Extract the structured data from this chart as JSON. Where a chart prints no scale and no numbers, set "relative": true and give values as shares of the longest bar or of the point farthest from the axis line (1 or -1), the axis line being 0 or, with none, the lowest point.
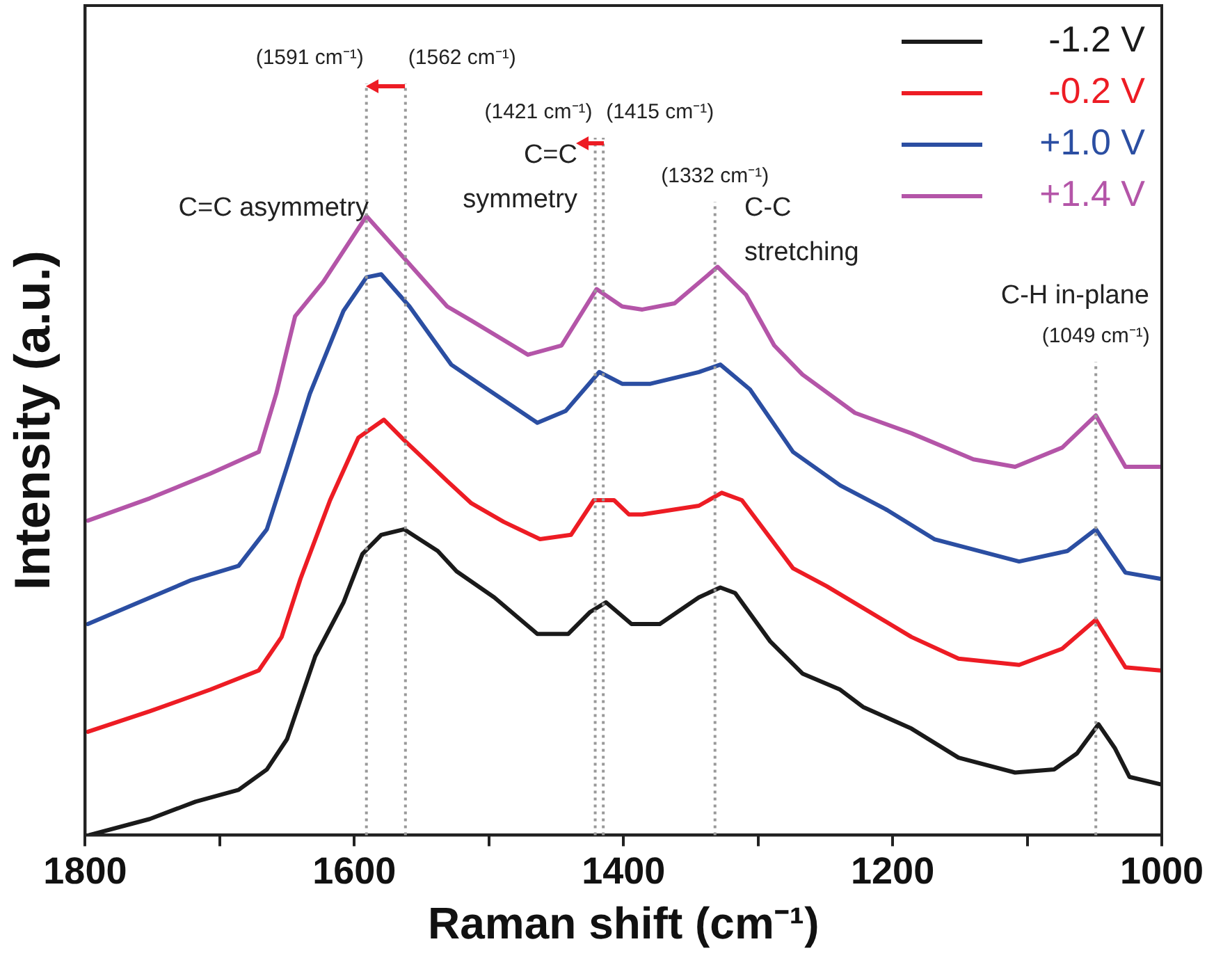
{
  "chart_data": {
    "type": "line",
    "relative": true,
    "xlabel": "Raman shift (cm⁻¹)",
    "ylabel": "Intensity (a.u.)",
    "xlim": [
      1800,
      1000
    ],
    "xticks": [
      1800,
      {
        "value": 1700,
        "label": null
      },
      1600,
      {
        "value": 1500,
        "label": null
      },
      1400,
      {
        "value": 1300,
        "label": null
      },
      1200,
      {
        "value": 1100,
        "label": null
      },
      1000
    ],
    "legend": "top right",
    "grid": false,
    "marker": "none",
    "line_style": "solid",
    "series": [
      {
        "name": "-1.2 V",
        "color": "#1a1a1a",
        "x": [
          1797,
          1752,
          1718,
          1686,
          1665,
          1650,
          1629,
          1608,
          1594,
          1580,
          1563,
          1538,
          1524,
          1496,
          1464,
          1441,
          1425,
          1413,
          1394,
          1373,
          1344,
          1328,
          1317,
          1291,
          1267,
          1239,
          1222,
          1186,
          1151,
          1109,
          1080,
          1063,
          1047,
          1035,
          1024,
          1001
        ],
        "values": [
          0.0,
          0.026,
          0.054,
          0.073,
          0.106,
          0.155,
          0.289,
          0.376,
          0.454,
          0.485,
          0.494,
          0.459,
          0.426,
          0.384,
          0.325,
          0.325,
          0.36,
          0.376,
          0.341,
          0.341,
          0.384,
          0.4,
          0.391,
          0.313,
          0.261,
          0.235,
          0.207,
          0.172,
          0.125,
          0.101,
          0.106,
          0.132,
          0.179,
          0.141,
          0.094,
          0.082
        ]
      },
      {
        "name": "-0.2 V",
        "color": "#ed1c24",
        "x": [
          1798,
          1752,
          1707,
          1671,
          1654,
          1640,
          1618,
          1597,
          1578,
          1563,
          1531,
          1513,
          1489,
          1462,
          1439,
          1422,
          1407,
          1396,
          1386,
          1344,
          1327,
          1312,
          1274,
          1249,
          1222,
          1186,
          1151,
          1106,
          1074,
          1049,
          1027,
          1001
        ],
        "values": [
          0.167,
          0.2,
          0.235,
          0.266,
          0.32,
          0.414,
          0.541,
          0.642,
          0.671,
          0.638,
          0.572,
          0.536,
          0.506,
          0.478,
          0.485,
          0.541,
          0.541,
          0.518,
          0.518,
          0.532,
          0.553,
          0.541,
          0.431,
          0.402,
          0.367,
          0.32,
          0.285,
          0.275,
          0.301,
          0.348,
          0.271,
          0.266
        ]
      },
      {
        "name": "+1.0 V",
        "color": "#2b4ea2",
        "x": [
          1798,
          1760,
          1721,
          1686,
          1665,
          1650,
          1633,
          1608,
          1591,
          1580,
          1559,
          1528,
          1507,
          1464,
          1443,
          1418,
          1401,
          1380,
          1344,
          1328,
          1306,
          1274,
          1239,
          1204,
          1169,
          1106,
          1070,
          1049,
          1027,
          1001
        ],
        "values": [
          0.341,
          0.376,
          0.412,
          0.435,
          0.494,
          0.595,
          0.713,
          0.847,
          0.901,
          0.906,
          0.854,
          0.76,
          0.729,
          0.666,
          0.685,
          0.748,
          0.729,
          0.729,
          0.748,
          0.76,
          0.72,
          0.619,
          0.565,
          0.525,
          0.478,
          0.442,
          0.459,
          0.494,
          0.424,
          0.414
        ]
      },
      {
        "name": "+1.4 V",
        "color": "#b455a8",
        "x": [
          1798,
          1752,
          1707,
          1671,
          1658,
          1644,
          1623,
          1591,
          1563,
          1531,
          1513,
          1471,
          1446,
          1420,
          1401,
          1386,
          1362,
          1330,
          1309,
          1288,
          1267,
          1228,
          1186,
          1140,
          1109,
          1074,
          1049,
          1027,
          1001
        ],
        "values": [
          0.508,
          0.544,
          0.584,
          0.619,
          0.713,
          0.838,
          0.894,
          1.0,
          0.932,
          0.854,
          0.831,
          0.776,
          0.791,
          0.882,
          0.854,
          0.849,
          0.859,
          0.918,
          0.873,
          0.791,
          0.744,
          0.682,
          0.649,
          0.607,
          0.595,
          0.626,
          0.678,
          0.595,
          0.595
        ]
      }
    ],
    "ref_lines": [
      {
        "axis": "x",
        "value": 1591,
        "label": "(1591 cm⁻¹)",
        "color": "#999999",
        "line_style": "dotted"
      },
      {
        "axis": "x",
        "value": 1562,
        "label": "(1562 cm⁻¹)",
        "color": "#999999",
        "line_style": "dotted"
      },
      {
        "axis": "x",
        "value": 1421,
        "label": "(1421 cm⁻¹)",
        "color": "#999999",
        "line_style": "dotted"
      },
      {
        "axis": "x",
        "value": 1415,
        "label": "(1415 cm⁻¹)",
        "color": "#999999",
        "line_style": "dotted"
      },
      {
        "axis": "x",
        "value": 1332,
        "label": "(1332 cm⁻¹)",
        "color": "#999999",
        "line_style": "dotted"
      },
      {
        "axis": "x",
        "value": 1049,
        "label": "(1049 cm⁻¹)",
        "color": "#999999",
        "line_style": "dotted"
      }
    ],
    "annotations": [
      "C=C asymmetry",
      "C=C symmetry",
      "C-C stretching",
      "C-H in-plane"
    ]
  }
}
